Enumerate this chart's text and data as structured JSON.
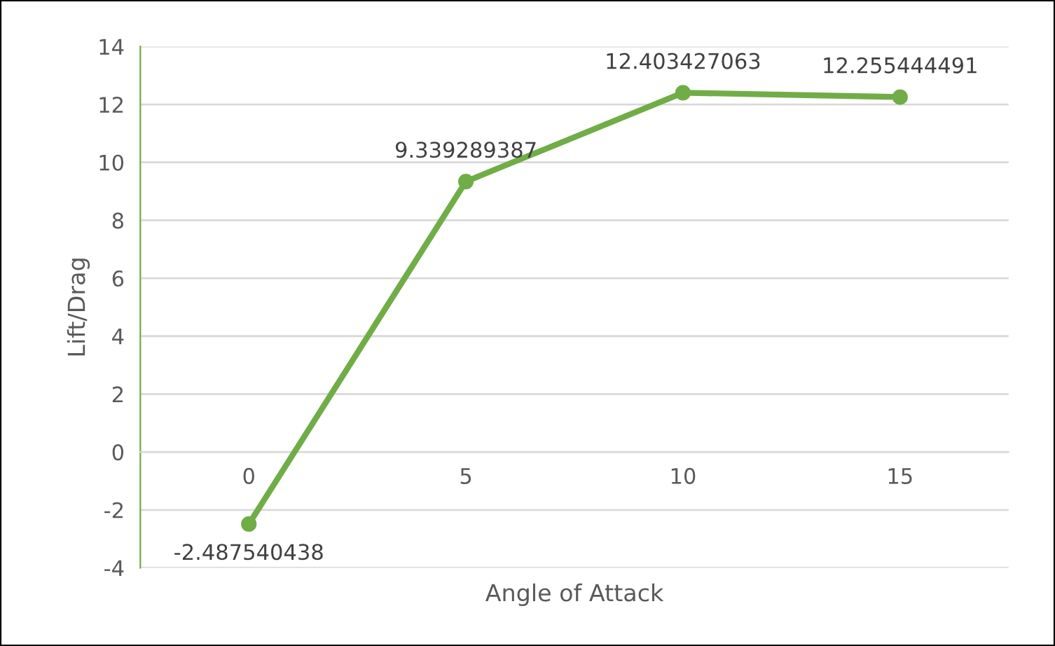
{
  "chart_data": {
    "type": "line",
    "xlabel": "Angle of Attack",
    "ylabel": "Lift/Drag",
    "categories": [
      "0",
      "5",
      "10",
      "15"
    ],
    "values": [
      -2.487540438,
      9.339289387,
      12.403427063,
      12.255444491
    ],
    "color": "#70ad47",
    "ylim": [
      -4,
      14
    ],
    "yticks": [
      -4,
      -2,
      0,
      2,
      4,
      6,
      8,
      10,
      12,
      14
    ],
    "grid": "y",
    "marker": "circle",
    "data_labels": true,
    "legend": false
  }
}
